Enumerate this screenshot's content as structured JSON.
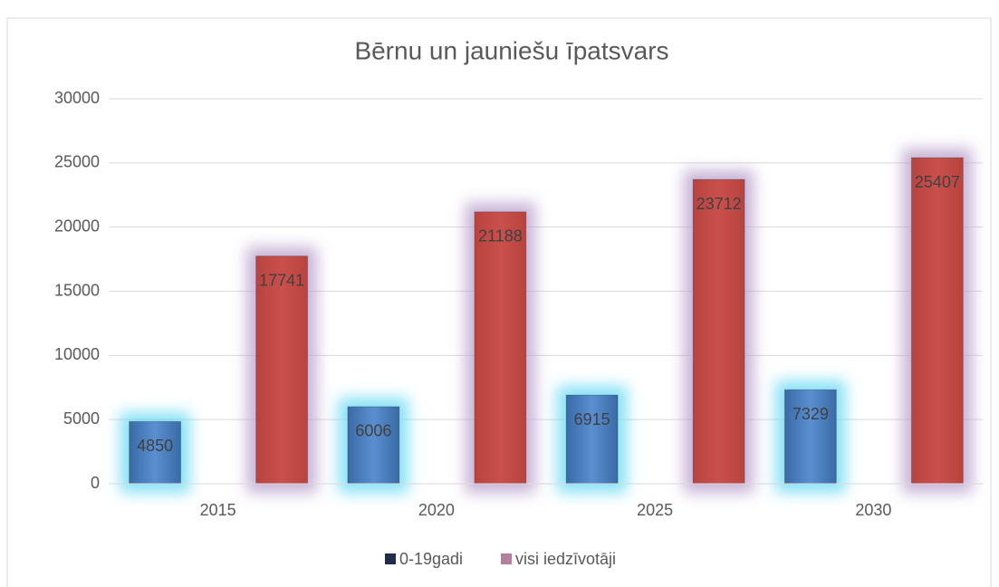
{
  "chart_data": {
    "type": "bar",
    "title": "Bērnu un jauniešu īpatsvars",
    "categories": [
      "2015",
      "2020",
      "2025",
      "2030"
    ],
    "series": [
      {
        "name": "0-19gadi",
        "color": "#4f81bd",
        "glow": "#5fd8f2",
        "legend_color": "#1f2d4a",
        "values": [
          4850,
          6006,
          6915,
          7329
        ]
      },
      {
        "name": "visi iedzīvotāji",
        "color": "#c0504d",
        "glow": "#b59ac9",
        "legend_color": "#b57fa0",
        "values": [
          17741,
          21188,
          23712,
          25407
        ]
      }
    ],
    "ylim": [
      0,
      30000
    ],
    "yticks": [
      0,
      5000,
      10000,
      15000,
      20000,
      25000,
      30000
    ],
    "grid": true,
    "legend": "bottom"
  }
}
